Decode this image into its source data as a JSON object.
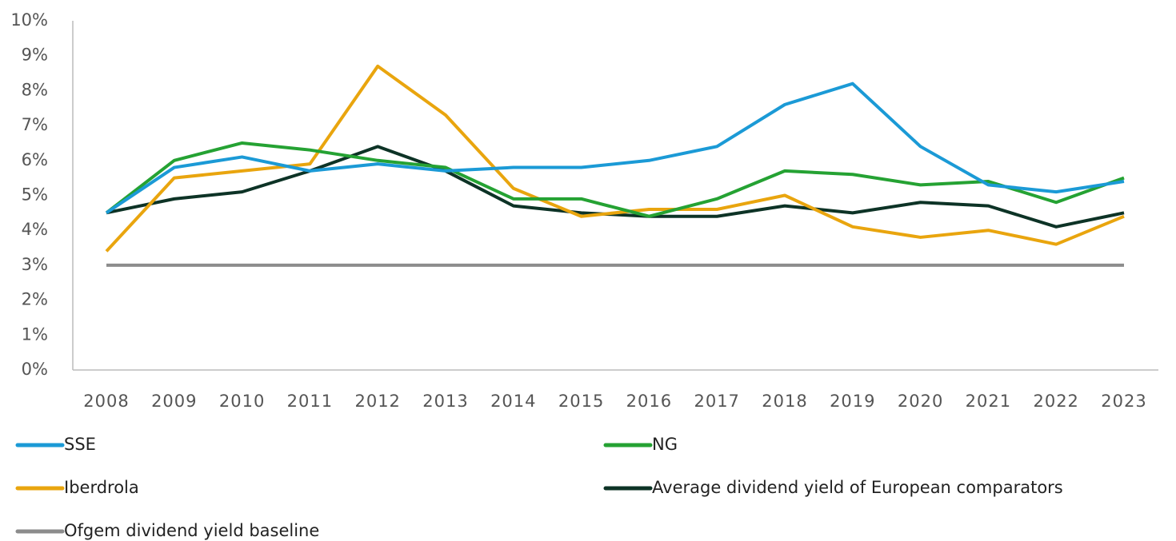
{
  "chart_data": {
    "type": "line",
    "categories": [
      "2008",
      "2009",
      "2010",
      "2011",
      "2012",
      "2013",
      "2014",
      "2015",
      "2016",
      "2017",
      "2018",
      "2019",
      "2020",
      "2021",
      "2022",
      "2023"
    ],
    "series": [
      {
        "name": "SSE",
        "color": "#1b9ad6",
        "values": [
          4.5,
          5.8,
          6.1,
          5.7,
          5.9,
          5.7,
          5.8,
          5.8,
          6.0,
          6.4,
          7.6,
          8.2,
          6.4,
          5.3,
          5.1,
          5.4
        ]
      },
      {
        "name": "NG",
        "color": "#25a233",
        "values": [
          4.5,
          6.0,
          6.5,
          6.3,
          6.0,
          5.8,
          4.9,
          4.9,
          4.4,
          4.9,
          5.7,
          5.6,
          5.3,
          5.4,
          4.8,
          5.5
        ]
      },
      {
        "name": "Iberdrola",
        "color": "#e9a50e",
        "values": [
          3.4,
          5.5,
          5.7,
          5.9,
          8.7,
          7.3,
          5.2,
          4.4,
          4.6,
          4.6,
          5.0,
          4.1,
          3.8,
          4.0,
          3.6,
          4.4
        ]
      },
      {
        "name": "Average dividend yield of European comparators",
        "color": "#0d3326",
        "values": [
          4.5,
          4.9,
          5.1,
          5.7,
          6.4,
          5.7,
          4.7,
          4.5,
          4.4,
          4.4,
          4.7,
          4.5,
          4.8,
          4.7,
          4.1,
          4.5
        ]
      },
      {
        "name": "Ofgem dividend yield baseline",
        "color": "#8c8c8c",
        "values": [
          3,
          3,
          3,
          3,
          3,
          3,
          3,
          3,
          3,
          3,
          3,
          3,
          3,
          3,
          3,
          3
        ]
      }
    ],
    "ylim": [
      0,
      10
    ],
    "yticks": [
      {
        "value": 0,
        "label": "0%"
      },
      {
        "value": 1,
        "label": "1%"
      },
      {
        "value": 2,
        "label": "2%"
      },
      {
        "value": 3,
        "label": "3%"
      },
      {
        "value": 4,
        "label": "4%"
      },
      {
        "value": 5,
        "label": "5%"
      },
      {
        "value": 6,
        "label": "6%"
      },
      {
        "value": 7,
        "label": "7%"
      },
      {
        "value": 8,
        "label": "8%"
      },
      {
        "value": 9,
        "label": "9%"
      },
      {
        "value": 10,
        "label": "10%"
      }
    ],
    "grid": false,
    "legend": "bottom"
  }
}
